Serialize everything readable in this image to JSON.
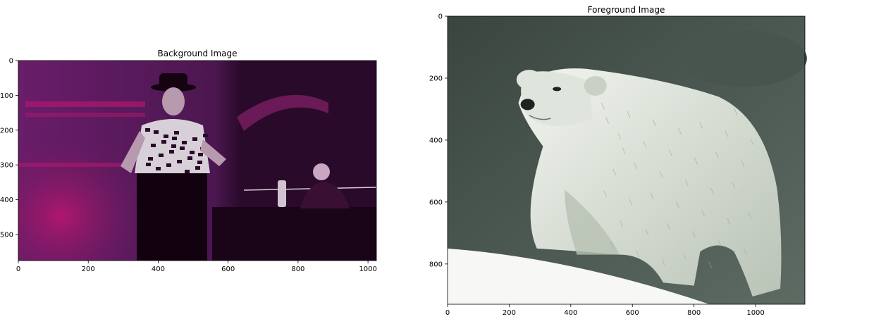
{
  "chart_data": [
    {
      "type": "image",
      "title": "Background Image",
      "xlim": [
        0,
        1024
      ],
      "ylim": [
        575,
        0
      ],
      "xticks": [
        0,
        200,
        400,
        600,
        800,
        1000
      ],
      "yticks": [
        0,
        100,
        200,
        300,
        400,
        500
      ],
      "xtick_labels": [
        "0",
        "200",
        "400",
        "600",
        "800",
        "1000"
      ],
      "ytick_labels": [
        "0",
        "100",
        "200",
        "300",
        "400",
        "500"
      ],
      "grid": false,
      "colors": {
        "purple_dark": "#2a0a2b",
        "purple_mid": "#5a1a5e",
        "magenta": "#b0176e",
        "light": "#d8d0d8"
      },
      "image_content": "scene"
    },
    {
      "type": "image",
      "title": "Foreground Image",
      "xlim": [
        0,
        1160
      ],
      "ylim": [
        930,
        0
      ],
      "xticks": [
        0,
        200,
        400,
        600,
        800,
        1000
      ],
      "yticks": [
        0,
        200,
        400,
        600,
        800
      ],
      "xtick_labels": [
        "0",
        "200",
        "400",
        "600",
        "800",
        "1000"
      ],
      "ytick_labels": [
        "0",
        "200",
        "400",
        "600",
        "800"
      ],
      "grid": false,
      "colors": {
        "rock_dark": "#3e4a44",
        "rock_mid": "#56645d",
        "bear": "#dfe5dc",
        "bear_shadow": "#b7c1b3",
        "snow": "#f7f8f6"
      },
      "image_content": "polar-bear"
    }
  ]
}
